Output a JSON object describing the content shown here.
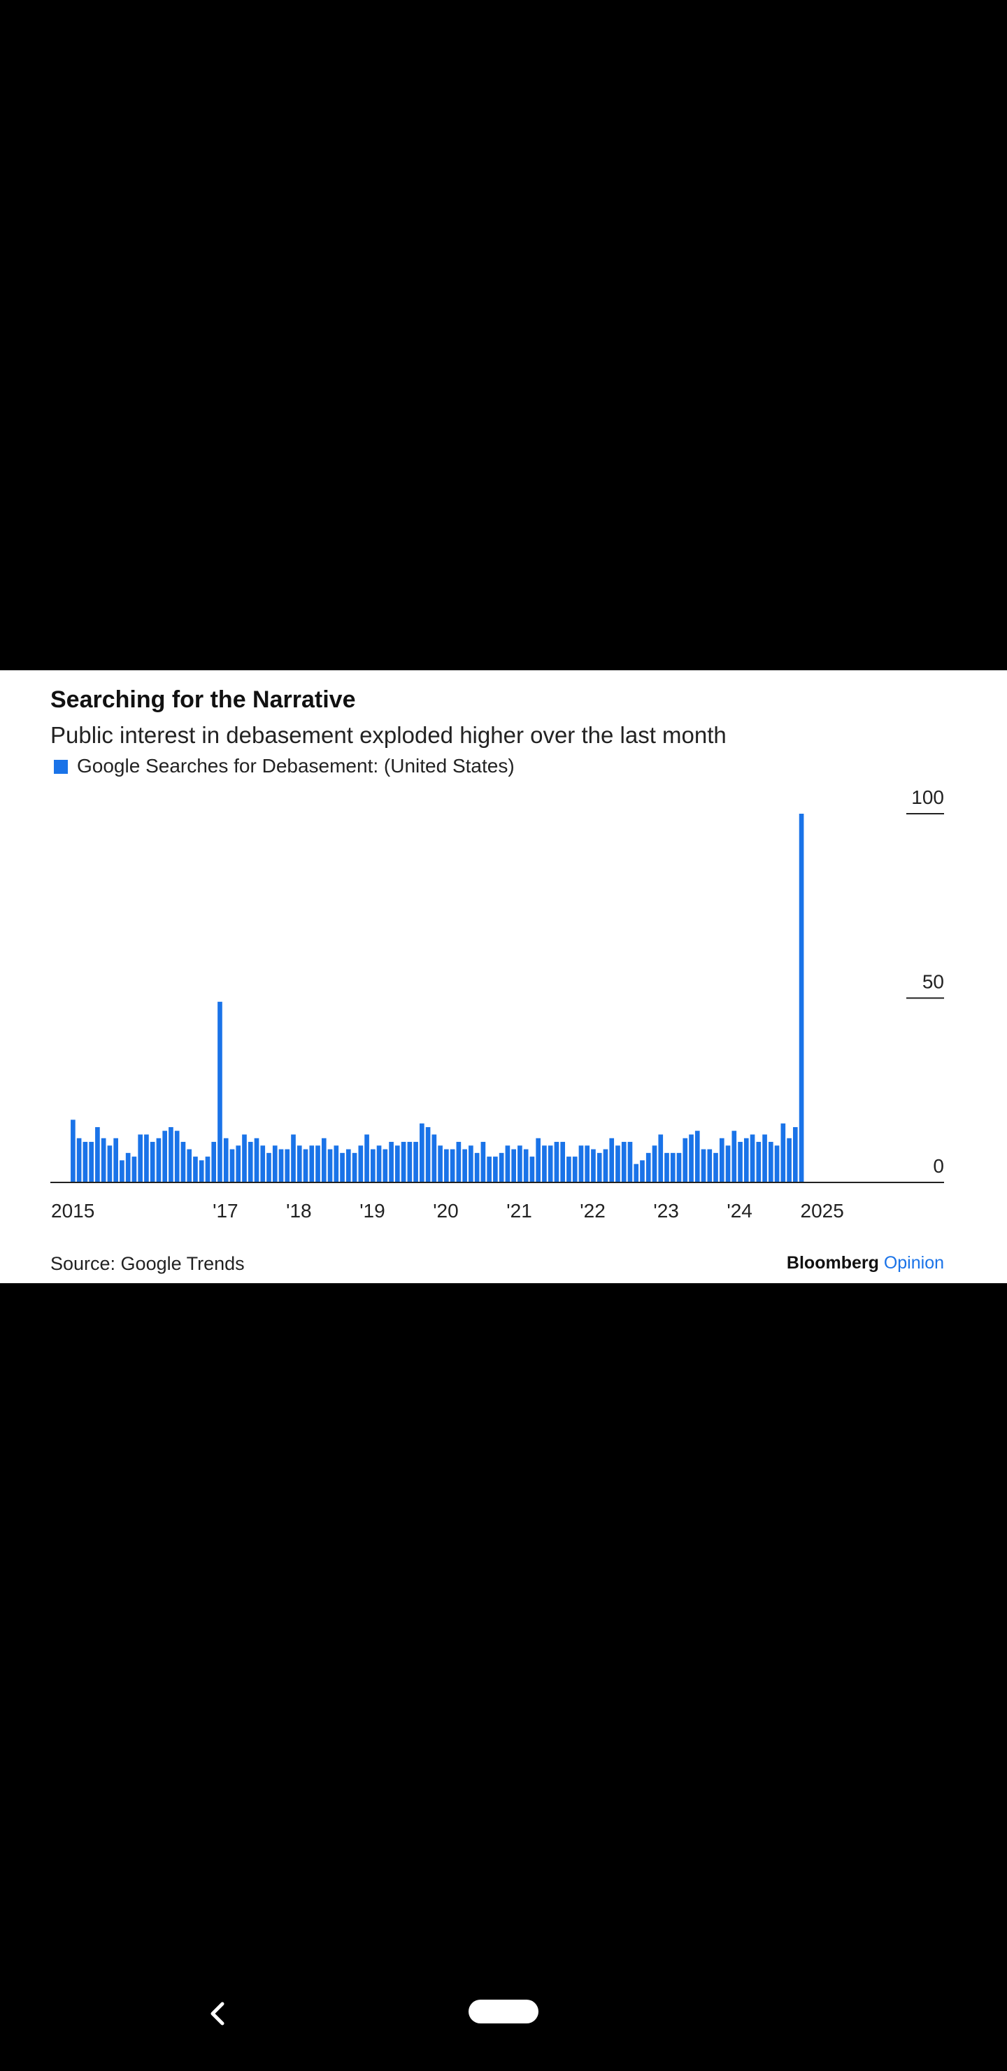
{
  "colors": {
    "bar": "#1a73e8",
    "background": "#ffffff",
    "screen_background": "#000000",
    "text": "#222222",
    "brand_accent": "#1a73e8"
  },
  "chart_data": {
    "type": "bar",
    "title": "Searching for the Narrative",
    "subtitle": "Public interest in debasement exploded higher over the last month",
    "legend": {
      "label": "Google Searches for Debasement: (United States)",
      "placement": "top-left"
    },
    "x_tick_labels": [
      "2015",
      "'17",
      "'18",
      "'19",
      "'20",
      "'21",
      "'22",
      "'23",
      "'24",
      "2025"
    ],
    "x_tick_years": [
      2015,
      2017,
      2018,
      2019,
      2020,
      2021,
      2022,
      2023,
      2024,
      2025
    ],
    "y_tick_labels": [
      "100",
      "50",
      "0"
    ],
    "y_tick_values": [
      100,
      50,
      0
    ],
    "ylim": [
      0,
      100
    ],
    "y_axis_side": "right",
    "grid": false,
    "x_start": "2015-01",
    "x_end": "2025-10",
    "series": [
      {
        "name": "Google Searches for Debasement: (United States)",
        "values": [
          17,
          12,
          11,
          11,
          15,
          12,
          10,
          12,
          6,
          8,
          7,
          13,
          13,
          11,
          12,
          14,
          15,
          14,
          11,
          9,
          7,
          6,
          7,
          11,
          49,
          12,
          9,
          10,
          13,
          11,
          12,
          10,
          8,
          10,
          9,
          9,
          13,
          10,
          9,
          10,
          10,
          12,
          9,
          10,
          8,
          9,
          8,
          10,
          13,
          9,
          10,
          9,
          11,
          10,
          11,
          11,
          11,
          16,
          15,
          13,
          10,
          9,
          9,
          11,
          9,
          10,
          8,
          11,
          7,
          7,
          8,
          10,
          9,
          10,
          9,
          7,
          12,
          10,
          10,
          11,
          11,
          7,
          7,
          10,
          10,
          9,
          8,
          9,
          12,
          10,
          11,
          11,
          5,
          6,
          8,
          10,
          13,
          8,
          8,
          8,
          12,
          13,
          14,
          9,
          9,
          8,
          12,
          10,
          14,
          11,
          12,
          13,
          11,
          13,
          11,
          10,
          16,
          12,
          15,
          100
        ]
      }
    ],
    "source": "Source: Google Trends",
    "brand": {
      "name": "Bloomberg",
      "accent": "Opinion"
    }
  },
  "nav": {
    "back_icon": "chevron-left-icon",
    "home_icon": "home-pill-icon"
  }
}
